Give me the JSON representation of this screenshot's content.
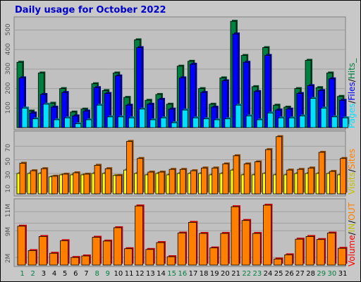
{
  "title": "Daily usage for October 2022",
  "colors": {
    "title": "#0000cc",
    "hits": "#008040",
    "files": "#0000ff",
    "pages": "#00e0ff",
    "visits": "#ffff00",
    "sites": "#ff8000",
    "volume": "#ff0000",
    "in": "#c0c000",
    "weekend_day_label": "#008040",
    "weekday_label": "#000000",
    "separator": "#000000"
  },
  "legend": {
    "panel1": {
      "pages": "Pages",
      "sep1": "/",
      "files": "Files",
      "sep2": "/",
      "hits": "Hits_"
    },
    "panel2": {
      "visits": "Visits",
      "sep": "/",
      "sites": "Sites"
    },
    "panel3": {
      "volume": "Volume",
      "sep": "/",
      "in": "IN",
      "sep2": "/",
      "out": "OUT"
    }
  },
  "chart_data": [
    {
      "type": "bar",
      "title": "Daily usage for October 2022",
      "categories": [
        "1",
        "2",
        "3",
        "4",
        "5",
        "6",
        "7",
        "8",
        "9",
        "10",
        "11",
        "12",
        "13",
        "14",
        "15",
        "16",
        "17",
        "18",
        "19",
        "20",
        "21",
        "22",
        "23",
        "24",
        "25",
        "26",
        "27",
        "28",
        "29",
        "30",
        "31"
      ],
      "weekend_days": [
        "1",
        "2",
        "8",
        "9",
        "15",
        "16",
        "22",
        "23",
        "29",
        "30"
      ],
      "ylim": [
        0,
        560
      ],
      "yticks": [
        "100",
        "200",
        "300",
        "400",
        "500"
      ],
      "series": [
        {
          "name": "Hits",
          "values": [
            335,
            85,
            280,
            125,
            200,
            80,
            95,
            225,
            190,
            280,
            155,
            450,
            140,
            170,
            120,
            315,
            340,
            200,
            120,
            255,
            545,
            370,
            210,
            410,
            115,
            105,
            200,
            345,
            205,
            280,
            160
          ]
        },
        {
          "name": "Files",
          "values": [
            255,
            75,
            170,
            105,
            180,
            60,
            85,
            205,
            175,
            265,
            115,
            410,
            120,
            145,
            95,
            255,
            325,
            180,
            105,
            240,
            480,
            335,
            185,
            370,
            90,
            95,
            175,
            215,
            190,
            250,
            140
          ]
        },
        {
          "name": "Pages",
          "values": [
            100,
            45,
            120,
            40,
            50,
            20,
            40,
            115,
            55,
            55,
            50,
            95,
            40,
            50,
            25,
            90,
            50,
            45,
            40,
            45,
            115,
            60,
            40,
            75,
            50,
            50,
            60,
            150,
            100,
            55,
            50
          ]
        }
      ]
    },
    {
      "type": "bar",
      "ylim": [
        0,
        90
      ],
      "yticks": [
        "10",
        "30",
        "50",
        "70"
      ],
      "series": [
        {
          "name": "Visits",
          "values": [
            30,
            30,
            30,
            25,
            28,
            28,
            28,
            30,
            30,
            27,
            35,
            30,
            28,
            30,
            28,
            30,
            30,
            30,
            28,
            30,
            35,
            28,
            28,
            30,
            28,
            28,
            30,
            30,
            30,
            30,
            28
          ]
        },
        {
          "name": "Sites",
          "values": [
            45,
            34,
            37,
            26,
            29,
            31,
            29,
            42,
            37,
            27,
            77,
            52,
            32,
            32,
            36,
            36,
            34,
            38,
            38,
            44,
            56,
            44,
            47,
            65,
            84,
            35,
            36,
            38,
            61,
            33,
            52
          ]
        }
      ]
    },
    {
      "type": "bar",
      "ylim": [
        0,
        17
      ],
      "yticks": [
        "2M",
        "9M",
        "11M"
      ],
      "series": [
        {
          "name": "Volume",
          "values": [
            10.2,
            3.8,
            7.5,
            3.1,
            6.4,
            2.0,
            2.4,
            7.3,
            6.3,
            9.8,
            4.3,
            15.5,
            4.1,
            5.9,
            2.2,
            8.4,
            11.2,
            8.3,
            4.5,
            8.3,
            15.3,
            11.7,
            8.3,
            15.7,
            1.6,
            2.7,
            6.8,
            7.5,
            6.7,
            8.4,
            4.4
          ]
        }
      ]
    }
  ]
}
